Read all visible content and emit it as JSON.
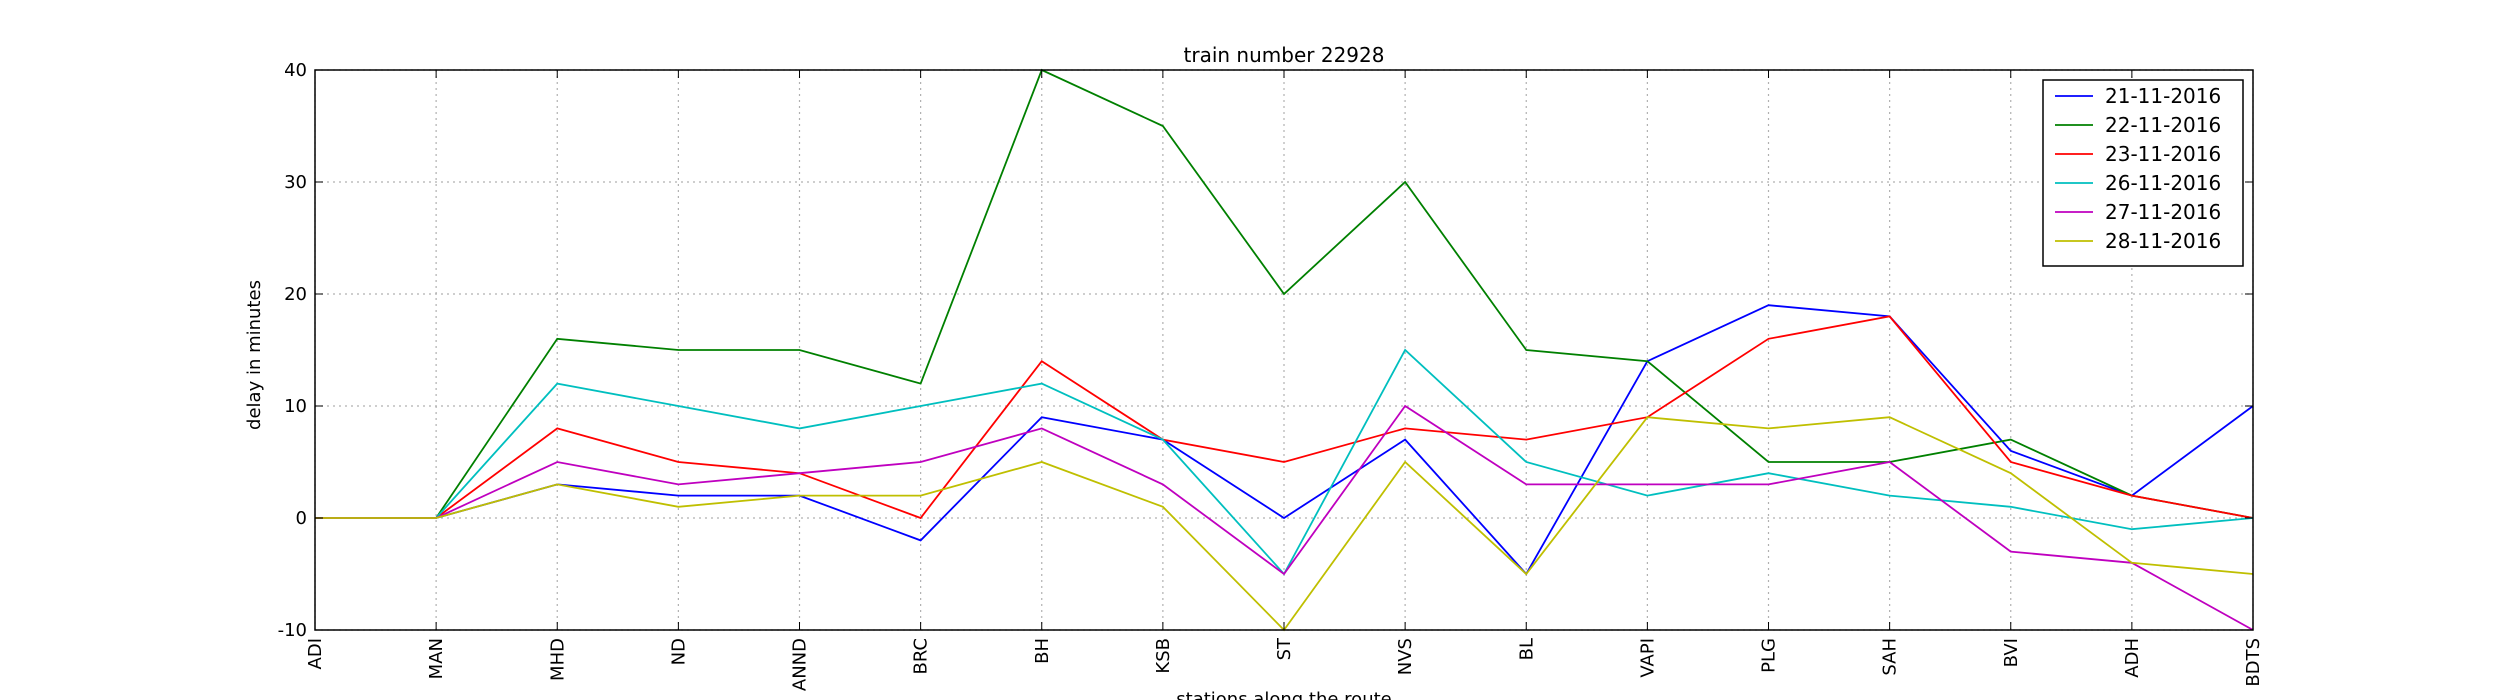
{
  "chart_data": {
    "type": "line",
    "title": "train number 22928",
    "xlabel": "stations along the route",
    "ylabel": "delay in minutes",
    "categories": [
      "ADI",
      "MAN",
      "MHD",
      "ND",
      "ANND",
      "BRC",
      "BH",
      "KSB",
      "ST",
      "NVS",
      "BL",
      "VAPI",
      "PLG",
      "SAH",
      "BVI",
      "ADH",
      "BDTS"
    ],
    "ylim": [
      -10,
      40
    ],
    "yticks": [
      -10,
      0,
      10,
      20,
      30,
      40
    ],
    "grid": true,
    "legend_position": "top-right",
    "series": [
      {
        "name": "21-11-2016",
        "color": "#0000ff",
        "values": [
          0,
          0,
          3,
          2,
          2,
          -2,
          9,
          7,
          0,
          7,
          -5,
          14,
          19,
          18,
          6,
          2,
          10
        ]
      },
      {
        "name": "22-11-2016",
        "color": "#008000",
        "values": [
          0,
          0,
          16,
          15,
          15,
          12,
          40,
          35,
          20,
          30,
          15,
          14,
          5,
          5,
          7,
          2,
          0
        ]
      },
      {
        "name": "23-11-2016",
        "color": "#ff0000",
        "values": [
          0,
          0,
          8,
          5,
          4,
          0,
          14,
          7,
          5,
          8,
          7,
          9,
          16,
          18,
          5,
          2,
          0
        ]
      },
      {
        "name": "26-11-2016",
        "color": "#00bfbf",
        "values": [
          0,
          0,
          12,
          10,
          8,
          10,
          12,
          7,
          -5,
          15,
          5,
          2,
          4,
          2,
          1,
          -1,
          0
        ]
      },
      {
        "name": "27-11-2016",
        "color": "#bf00bf",
        "values": [
          0,
          0,
          5,
          3,
          4,
          5,
          8,
          3,
          -5,
          10,
          3,
          3,
          3,
          5,
          -3,
          -4,
          -10
        ]
      },
      {
        "name": "28-11-2016",
        "color": "#bfbf00",
        "values": [
          0,
          0,
          3,
          1,
          2,
          2,
          5,
          1,
          -10,
          5,
          -5,
          9,
          8,
          9,
          4,
          -4,
          -5
        ]
      }
    ]
  }
}
